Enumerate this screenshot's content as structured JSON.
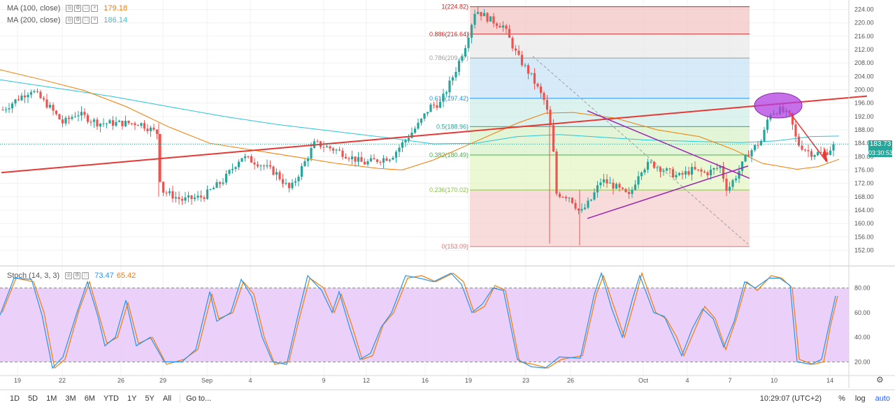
{
  "legend": {
    "ma100": {
      "label": "MA (100, close)",
      "value": "179.18",
      "color": "#f57c00"
    },
    "ma200": {
      "label": "MA (200, close)",
      "value": "186.14",
      "color": "#26c6da"
    },
    "stoch": {
      "label": "Stoch (14, 3, 3)",
      "k_value": "73.47",
      "d_value": "65.42",
      "k_color": "#2196f3",
      "d_color": "#f57c00"
    }
  },
  "price_tags": {
    "last": "183.73",
    "countdown": "03:30:53"
  },
  "fib_labels": [
    {
      "text": "1(224.82)",
      "level": 224.82
    },
    {
      "text": "0.886(216.64)",
      "level": 216.64
    },
    {
      "text": "0.786(209.47)",
      "level": 209.47
    },
    {
      "text": "0.618(197.42)",
      "level": 197.42
    },
    {
      "text": "0.5(188.96)",
      "level": 188.96
    },
    {
      "text": "0.382(180.49)",
      "level": 180.49
    },
    {
      "text": "0.236(170.02)",
      "level": 170.02
    },
    {
      "text": "0(153.09)",
      "level": 153.09
    }
  ],
  "chart_data": [
    {
      "type": "candlestick",
      "ylim": [
        150,
        226
      ],
      "yticks": [
        "224.00",
        "220.00",
        "216.00",
        "212.00",
        "208.00",
        "204.00",
        "200.00",
        "196.00",
        "192.00",
        "188.00",
        "184.00",
        "180.00",
        "176.00",
        "172.00",
        "168.00",
        "164.00",
        "160.00",
        "156.00",
        "152.00"
      ],
      "xticks": [
        "19",
        "22",
        "26",
        "29",
        "Sep",
        "4",
        "9",
        "12",
        "16",
        "19",
        "23",
        "26",
        "Oct",
        "4",
        "7",
        "10",
        "14"
      ],
      "grid": true,
      "series": [
        {
          "name": "MA (100, close)",
          "color": "#f57c00"
        },
        {
          "name": "MA (200, close)",
          "color": "#26c6da"
        }
      ],
      "fibonacci": {
        "from": 153.09,
        "to": 224.82,
        "levels": [
          {
            "ratio": 1,
            "price": 224.82,
            "color": "#c62828"
          },
          {
            "ratio": 0.886,
            "price": 216.64,
            "color": "#c62828"
          },
          {
            "ratio": 0.786,
            "price": 209.47,
            "color": "#9e9e9e"
          },
          {
            "ratio": 0.618,
            "price": 197.42,
            "color": "#2196f3"
          },
          {
            "ratio": 0.5,
            "price": 188.96,
            "color": "#26a69a"
          },
          {
            "ratio": 0.382,
            "price": 180.49,
            "color": "#4caf50"
          },
          {
            "ratio": 0.236,
            "price": 170.02,
            "color": "#8bc34a"
          },
          {
            "ratio": 0,
            "price": 153.09,
            "color": "#e57373"
          }
        ]
      },
      "last_price": 183.73
    },
    {
      "type": "line",
      "title": "Stoch (14, 3, 3)",
      "ylim": [
        10,
        95
      ],
      "yticks": [
        "80.00",
        "60.00",
        "40.00",
        "20.00"
      ],
      "bands": [
        20,
        80
      ],
      "series": [
        {
          "name": "%K",
          "color": "#2196f3",
          "last": 73.47
        },
        {
          "name": "%D",
          "color": "#f57c00",
          "last": 65.42
        }
      ]
    }
  ],
  "bottom_bar": {
    "timeframes": [
      "1D",
      "5D",
      "1M",
      "3M",
      "6M",
      "YTD",
      "1Y",
      "5Y",
      "All"
    ],
    "goto": "Go to...",
    "clock": "10:29:07 (UTC+2)",
    "percent": "%",
    "log": "log",
    "auto": "auto"
  }
}
